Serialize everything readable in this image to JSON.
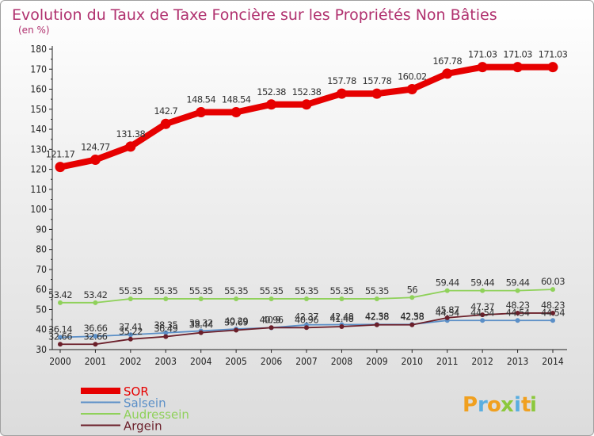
{
  "chart_data": {
    "type": "line",
    "title": "Evolution du Taux de Taxe Foncière sur les Propriétés Non Bâties",
    "subtitle": "(en %)",
    "xlabel": "",
    "ylabel": "",
    "x": [
      "2000",
      "2001",
      "2002",
      "2003",
      "2004",
      "2005",
      "2006",
      "2007",
      "2008",
      "2009",
      "2010",
      "2011",
      "2012",
      "2013",
      "2014"
    ],
    "ylim": [
      30,
      180
    ],
    "ytick_step": 10,
    "grid": false,
    "legend_position": "bottom-left",
    "series": [
      {
        "name": "SOR",
        "color": "#e60000",
        "values": [
          121.17,
          124.77,
          131.38,
          142.7,
          148.54,
          148.54,
          152.38,
          152.38,
          157.78,
          157.78,
          160.02,
          167.78,
          171.03,
          171.03,
          171.03
        ],
        "labels": [
          "121.17",
          "124.77",
          "131.38",
          "142.7",
          "148.54",
          "148.54",
          "152.38",
          "152.38",
          "157.78",
          "157.78",
          "160.02",
          "167.78",
          "171.03",
          "171.03",
          "171.03"
        ]
      },
      {
        "name": "Salsein",
        "color": "#5b8fc7",
        "values": [
          36.14,
          36.66,
          37.41,
          38.35,
          39.32,
          40.29,
          40.9,
          42.37,
          42.48,
          42.58,
          42.58,
          44.54,
          44.54,
          44.54,
          44.54
        ],
        "labels": [
          "36.14",
          "36.66",
          "37.41",
          "38.35",
          "39.32",
          "40.29",
          "40.9",
          "42.37",
          "42.48",
          "42.58",
          "42.58",
          "44.54",
          "44.54",
          "44.54",
          "44.54"
        ]
      },
      {
        "name": "Audressein",
        "color": "#8fd15a",
        "values": [
          53.42,
          53.42,
          55.35,
          55.35,
          55.35,
          55.35,
          55.35,
          55.35,
          55.35,
          55.35,
          56,
          59.44,
          59.44,
          59.44,
          60.03
        ],
        "labels": [
          "53.42",
          "53.42",
          "55.35",
          "55.35",
          "55.35",
          "55.35",
          "55.35",
          "55.35",
          "55.35",
          "55.35",
          "56",
          "59.44",
          "59.44",
          "59.44",
          "60.03"
        ]
      },
      {
        "name": "Argein",
        "color": "#6b1f2a",
        "values": [
          32.66,
          32.66,
          35.22,
          36.49,
          38.44,
          39.69,
          40.96,
          40.96,
          41.48,
          42.38,
          42.38,
          45.87,
          47.37,
          48.23,
          48.23
        ],
        "labels": [
          "32.66",
          "32.66",
          "35.22",
          "36.49",
          "38.44",
          "39.69",
          "40.96",
          "40.96",
          "41.48",
          "42.38",
          "42.38",
          "45.87",
          "47.37",
          "48.23",
          "48.23"
        ]
      }
    ]
  },
  "brand": {
    "letters": [
      "P",
      "r",
      "o",
      "x",
      "i",
      "t",
      "i"
    ],
    "colors": [
      "#f0a020",
      "#5aaee0",
      "#f0a020",
      "#8cc83c",
      "#5aaee0",
      "#f0a020",
      "#8cc83c"
    ]
  }
}
